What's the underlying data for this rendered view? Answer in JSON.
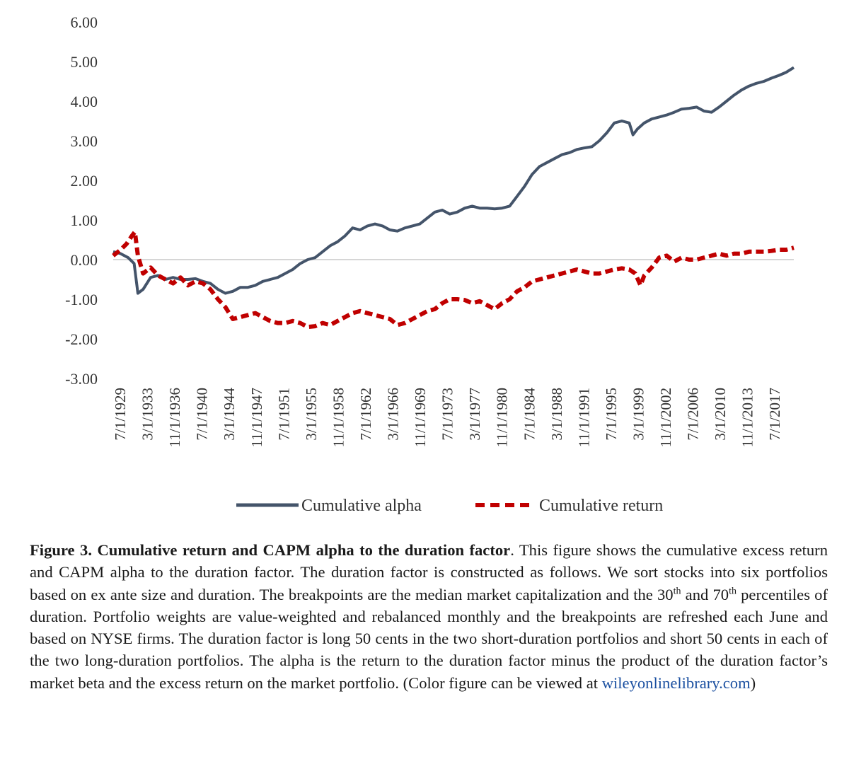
{
  "chart_data": {
    "type": "line",
    "title": "",
    "xlabel": "",
    "ylabel": "",
    "ylim": [
      -3,
      6
    ],
    "yticks": [
      "6.00",
      "5.00",
      "4.00",
      "3.00",
      "2.00",
      "1.00",
      "0.00",
      "-1.00",
      "-2.00",
      "-3.00"
    ],
    "xlim": [
      1929.5,
      2020.5
    ],
    "xticks": [
      "7/1/1929",
      "3/1/1933",
      "11/1/1936",
      "7/1/1940",
      "3/1/1944",
      "11/1/1947",
      "7/1/1951",
      "3/1/1955",
      "11/1/1958",
      "7/1/1962",
      "3/1/1966",
      "11/1/1969",
      "7/1/1973",
      "3/1/1977",
      "11/1/1980",
      "7/1/1984",
      "3/1/1988",
      "11/1/1991",
      "7/1/1995",
      "3/1/1999",
      "11/1/2002",
      "7/1/2006",
      "3/1/2010",
      "11/1/2013",
      "7/1/2017"
    ],
    "zero_line": true,
    "legend_position": "bottom",
    "series": [
      {
        "name": "Cumulative alpha",
        "color": "#44546a",
        "style": "solid",
        "x": [
          1929.5,
          1930.5,
          1931.5,
          1932.3,
          1932.8,
          1933.5,
          1934.5,
          1935.5,
          1936.5,
          1937.5,
          1938.5,
          1939.5,
          1940.5,
          1941.5,
          1942.5,
          1943.5,
          1944.5,
          1945.5,
          1946.5,
          1947.5,
          1948.5,
          1949.5,
          1950.5,
          1951.5,
          1952.5,
          1953.5,
          1954.5,
          1955.5,
          1956.5,
          1957.5,
          1958.5,
          1959.5,
          1960.5,
          1961.5,
          1962.5,
          1963.5,
          1964.5,
          1965.5,
          1966.5,
          1967.5,
          1968.5,
          1969.5,
          1970.5,
          1971.5,
          1972.5,
          1973.5,
          1974.5,
          1975.5,
          1976.5,
          1977.5,
          1978.5,
          1979.5,
          1980.5,
          1981.5,
          1982.5,
          1983.5,
          1984.5,
          1985.5,
          1986.5,
          1987.5,
          1988.5,
          1989.5,
          1990.5,
          1991.5,
          1992.5,
          1993.5,
          1994.5,
          1995.5,
          1996.5,
          1997.5,
          1998.5,
          1999.0,
          1999.6,
          2000.5,
          2001.5,
          2002.5,
          2003.5,
          2004.5,
          2005.5,
          2006.5,
          2007.5,
          2008.5,
          2009.5,
          2010.5,
          2011.5,
          2012.5,
          2013.5,
          2014.5,
          2015.5,
          2016.5,
          2017.5,
          2018.5,
          2019.5,
          2020.5
        ],
        "values": [
          0.2,
          0.15,
          0.05,
          -0.1,
          -0.85,
          -0.75,
          -0.45,
          -0.4,
          -0.5,
          -0.45,
          -0.5,
          -0.5,
          -0.48,
          -0.55,
          -0.6,
          -0.75,
          -0.85,
          -0.8,
          -0.7,
          -0.7,
          -0.65,
          -0.55,
          -0.5,
          -0.45,
          -0.35,
          -0.25,
          -0.1,
          0.0,
          0.05,
          0.2,
          0.35,
          0.45,
          0.6,
          0.8,
          0.75,
          0.85,
          0.9,
          0.85,
          0.75,
          0.72,
          0.8,
          0.85,
          0.9,
          1.05,
          1.2,
          1.25,
          1.15,
          1.2,
          1.3,
          1.35,
          1.3,
          1.3,
          1.28,
          1.3,
          1.35,
          1.6,
          1.85,
          2.15,
          2.35,
          2.45,
          2.55,
          2.65,
          2.7,
          2.78,
          2.82,
          2.85,
          3.0,
          3.2,
          3.45,
          3.5,
          3.45,
          3.15,
          3.3,
          3.45,
          3.55,
          3.6,
          3.65,
          3.72,
          3.8,
          3.82,
          3.85,
          3.75,
          3.72,
          3.85,
          4.0,
          4.15,
          4.28,
          4.38,
          4.45,
          4.5,
          4.58,
          4.65,
          4.73,
          4.85
        ]
      },
      {
        "name": "Cumulative return",
        "color": "#c00000",
        "style": "dashed",
        "x": [
          1929.5,
          1930.5,
          1931.3,
          1932.0,
          1932.4,
          1932.8,
          1933.5,
          1934.5,
          1935.5,
          1936.5,
          1937.5,
          1938.5,
          1939.5,
          1940.5,
          1941.5,
          1942.5,
          1943.5,
          1944.5,
          1945.5,
          1946.5,
          1947.5,
          1948.5,
          1949.5,
          1950.5,
          1951.5,
          1952.5,
          1953.5,
          1954.5,
          1955.5,
          1956.5,
          1957.5,
          1958.5,
          1959.5,
          1960.5,
          1961.5,
          1962.5,
          1963.5,
          1964.5,
          1965.5,
          1966.5,
          1967.5,
          1968.5,
          1969.5,
          1970.5,
          1971.5,
          1972.5,
          1973.5,
          1974.5,
          1975.5,
          1976.5,
          1977.5,
          1978.5,
          1979.5,
          1980.5,
          1981.5,
          1982.5,
          1983.5,
          1984.5,
          1985.5,
          1986.5,
          1987.5,
          1988.5,
          1989.5,
          1990.5,
          1991.5,
          1992.5,
          1993.5,
          1994.5,
          1995.5,
          1996.5,
          1997.5,
          1998.5,
          1999.3,
          2000.0,
          2000.5,
          2001.5,
          2002.5,
          2003.5,
          2004.5,
          2005.5,
          2006.5,
          2007.5,
          2008.5,
          2009.5,
          2010.5,
          2011.5,
          2012.5,
          2013.5,
          2014.5,
          2015.5,
          2016.5,
          2017.5,
          2018.5,
          2019.5,
          2020.5
        ],
        "values": [
          0.1,
          0.25,
          0.4,
          0.6,
          0.7,
          0.1,
          -0.35,
          -0.2,
          -0.4,
          -0.5,
          -0.6,
          -0.45,
          -0.65,
          -0.55,
          -0.6,
          -0.75,
          -1.0,
          -1.2,
          -1.5,
          -1.45,
          -1.4,
          -1.35,
          -1.45,
          -1.55,
          -1.6,
          -1.6,
          -1.55,
          -1.6,
          -1.7,
          -1.68,
          -1.6,
          -1.65,
          -1.55,
          -1.45,
          -1.35,
          -1.3,
          -1.35,
          -1.4,
          -1.45,
          -1.5,
          -1.65,
          -1.6,
          -1.5,
          -1.4,
          -1.3,
          -1.25,
          -1.1,
          -1.0,
          -1.0,
          -1.02,
          -1.1,
          -1.05,
          -1.15,
          -1.25,
          -1.1,
          -1.0,
          -0.8,
          -0.7,
          -0.55,
          -0.5,
          -0.45,
          -0.4,
          -0.35,
          -0.3,
          -0.25,
          -0.3,
          -0.35,
          -0.35,
          -0.3,
          -0.25,
          -0.22,
          -0.25,
          -0.35,
          -0.65,
          -0.4,
          -0.2,
          0.05,
          0.1,
          -0.05,
          0.05,
          0.0,
          0.0,
          0.05,
          0.1,
          0.15,
          0.1,
          0.15,
          0.15,
          0.2,
          0.2,
          0.2,
          0.22,
          0.25,
          0.25,
          0.3
        ]
      }
    ]
  },
  "caption": {
    "label": "Figure 3.",
    "title": "Cumulative return and CAPM alpha to the duration factor",
    "text_1": ". This figure shows the cumulative excess return and CAPM alpha to the duration factor. The duration factor is constructed as follows. We sort stocks into six portfolios based on ex ante size and duration. The breakpoints are the median market capitalization and the 30",
    "sup_1": "th",
    "text_2": " and 70",
    "sup_2": "th",
    "text_3": " percentiles of duration. Portfolio weights are value-weighted and rebalanced monthly and the breakpoints are refreshed each June and based on NYSE firms. The duration factor is long 50 cents in the two short-duration portfolios and short 50 cents in each of the two long-duration portfolios. The alpha is the return to the duration factor minus the product of the duration factor’s market beta and the excess return on the market portfolio. (Color figure can be viewed at ",
    "link": "wileyonlinelibrary.com",
    "text_4": ")"
  }
}
